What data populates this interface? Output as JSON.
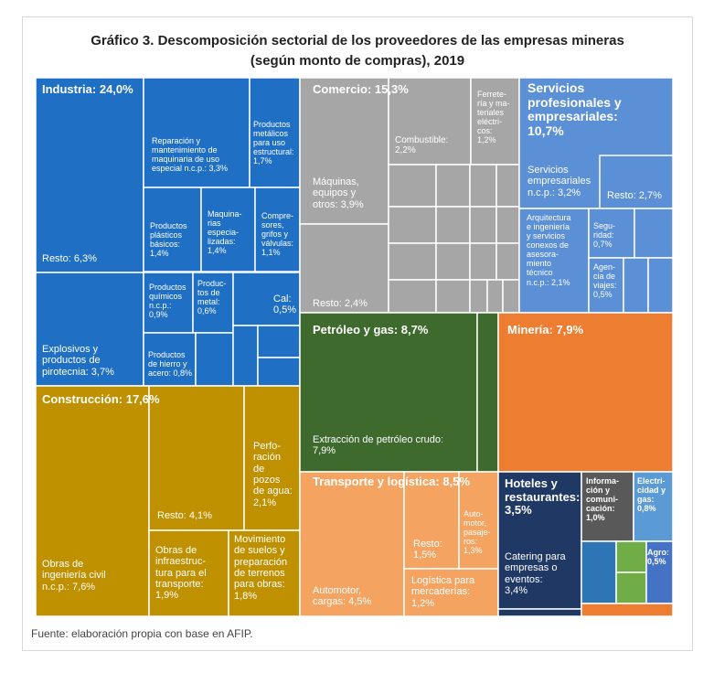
{
  "chart_data": {
    "type": "treemap",
    "title": "Gráfico 3. Descomposición sectorial de los proveedores de las empresas mineras",
    "subtitle": "(según monto de compras), 2019",
    "source": "Fuente: elaboración propia con base en AFIP.",
    "colors": {
      "industria": "#1f6fc4",
      "comercio": "#a6a6a6",
      "servicios": "#5b8fd6",
      "petroleo": "#3e6a2e",
      "mineria": "#ed7d31",
      "construccion": "#bf9000",
      "transporte": "#f4a460",
      "hoteles": "#1f3864",
      "informacion": "#595959",
      "electricidad": "#5b9bd5",
      "agro": "#4472c4",
      "otros_verde": "#70ad47",
      "otros_teal": "#2e75b6"
    },
    "sectors": [
      {
        "name": "Industria",
        "value": 24.0,
        "label": "Industria: 24,0%",
        "sub": [
          {
            "name": "Resto",
            "value": 6.3,
            "label": "Resto: 6,3%"
          },
          {
            "name": "Explosivos y productos de pirotecnia",
            "value": 3.7,
            "label": "Explosivos y\nproductos de\npirotecnia: 3,7%"
          },
          {
            "name": "Reparación y mantenimiento de maquinaria de uso especial n.c.p.",
            "value": 3.3,
            "label": "Reparación y\nmantenimiento de\nmaquinaria de uso\nespecial n.c.p.: 3,3%"
          },
          {
            "name": "Productos metálicos para uso estructural",
            "value": 1.7,
            "label": "Productos\nmetálicos\npara uso\nestructural:\n1,7%"
          },
          {
            "name": "Productos plásticos básicos",
            "value": 1.4,
            "label": "Productos\nplásticos\nbásicos:\n1,4%"
          },
          {
            "name": "Maquinarias especializadas",
            "value": 1.4,
            "label": "Maquina-\nrias\nespecia-\nlizadas:\n1,4%"
          },
          {
            "name": "Compresores, grifos y válvulas",
            "value": 1.1,
            "label": "Compre-\nsores,\ngrifos y\nválvulas:\n1,1%"
          },
          {
            "name": "Productos químicos n.c.p.",
            "value": 0.9,
            "label": "Productos\nquímicos\nn.c.p.:\n0,9%"
          },
          {
            "name": "Productos de metal",
            "value": 0.6,
            "label": "Produc-\ntos de\nmetal:\n0,6%"
          },
          {
            "name": "Cal",
            "value": 0.5,
            "label": "Cal:\n0,5%"
          },
          {
            "name": "Productos de hierro y acero",
            "value": 0.8,
            "label": "Productos\nde hierro y\nacero: 0,8%"
          }
        ]
      },
      {
        "name": "Construcción",
        "value": 17.6,
        "label": "Construcción: 17,6%",
        "sub": [
          {
            "name": "Obras de ingeniería civil n.c.p.",
            "value": 7.6,
            "label": "Obras de\ningeniería civil\nn.c.p.: 7,6%"
          },
          {
            "name": "Resto",
            "value": 4.1,
            "label": "Resto: 4,1%"
          },
          {
            "name": "Perforación de pozos de agua",
            "value": 2.1,
            "label": "Perfo-\nración\nde\npozos\nde agua:\n2,1%"
          },
          {
            "name": "Obras de infraestructura para el transporte",
            "value": 1.9,
            "label": "Obras de\ninfraestruc-\ntura para el\ntransporte:\n1,9%"
          },
          {
            "name": "Movimiento de suelos y preparación de terrenos para obras",
            "value": 1.8,
            "label": "Movimiento\nde suelos y\npreparación\nde terrenos\npara obras:\n1,8%"
          }
        ]
      },
      {
        "name": "Comercio",
        "value": 15.3,
        "label": "Comercio: 15,3%",
        "sub": [
          {
            "name": "Máquinas, equipos y otros",
            "value": 3.9,
            "label": "Máquinas,\nequipos y\notros: 3,9%"
          },
          {
            "name": "Resto",
            "value": 2.4,
            "label": "Resto: 2,4%"
          },
          {
            "name": "Combustible",
            "value": 2.2,
            "label": "Combustible:\n2,2%"
          },
          {
            "name": "Ferretería y materiales eléctricos",
            "value": 1.2,
            "label": "Ferrete-\nría y ma-\nteriales\neléctri-\ncos:\n1,2%"
          }
        ]
      },
      {
        "name": "Servicios profesionales y empresariales",
        "value": 10.7,
        "label": "Servicios\nprofesionales y\nempresariales:\n10,7%",
        "sub": [
          {
            "name": "Servicios empresariales n.c.p.",
            "value": 3.2,
            "label": "Servicios\nempresariales\nn.c.p.: 3,2%"
          },
          {
            "name": "Resto",
            "value": 2.7,
            "label": "Resto: 2,7%"
          },
          {
            "name": "Arquitectura e ingeniería y servicios conexos de asesoramiento técnico",
            "value": 2.1,
            "label": "Arquitectura\ne ingeniería\ny servicios\nconexos de\nasesora-\nmiento\ntécnico\nn.c.p.: 2,1%"
          },
          {
            "name": "Seguridad",
            "value": 0.7,
            "label": "Segu-\nridad:\n0,7%"
          },
          {
            "name": "Agencia de viajes",
            "value": 0.5,
            "label": "Agen-\ncia de\nviajes:\n0,5%"
          }
        ]
      },
      {
        "name": "Petróleo y gas",
        "value": 8.7,
        "label": "Petróleo y gas: 8,7%",
        "sub": [
          {
            "name": "Extracción de petróleo crudo",
            "value": 7.9,
            "label": "Extracción de petróleo crudo:\n7,9%"
          }
        ]
      },
      {
        "name": "Minería",
        "value": 7.9,
        "label": "Minería: 7,9%"
      },
      {
        "name": "Transporte y logística",
        "value": 8.5,
        "label": "Transporte y logística: 8,5%",
        "sub": [
          {
            "name": "Automotor, cargas",
            "value": 4.5,
            "label": "Automotor,\ncargas: 4,5%"
          },
          {
            "name": "Resto",
            "value": 1.5,
            "label": "Resto:\n1,5%"
          },
          {
            "name": "Automotor, pasajeros",
            "value": 1.3,
            "label": "Auto-\nmotor,\npasaje-\nros:\n1,3%"
          },
          {
            "name": "Logística para mercaderías",
            "value": 1.2,
            "label": "Logística para\nmercaderías:\n1,2%"
          }
        ]
      },
      {
        "name": "Hoteles y restaurantes",
        "value": 3.5,
        "label": "Hoteles y\nrestaurantes:\n3,5%",
        "sub": [
          {
            "name": "Catering para empresas o eventos",
            "value": 3.4,
            "label": "Catering para\nempresas o\neventos:\n3,4%"
          }
        ]
      },
      {
        "name": "Información y comunicación",
        "value": 1.0,
        "label": "Informa-\nción y\ncomuni-\ncación:\n1,0%"
      },
      {
        "name": "Electricidad y gas",
        "value": 0.8,
        "label": "Electri-\ncidad y\ngas:\n0,8%"
      },
      {
        "name": "Agro",
        "value": 0.5,
        "label": "Agro:\n0,5%"
      }
    ]
  }
}
